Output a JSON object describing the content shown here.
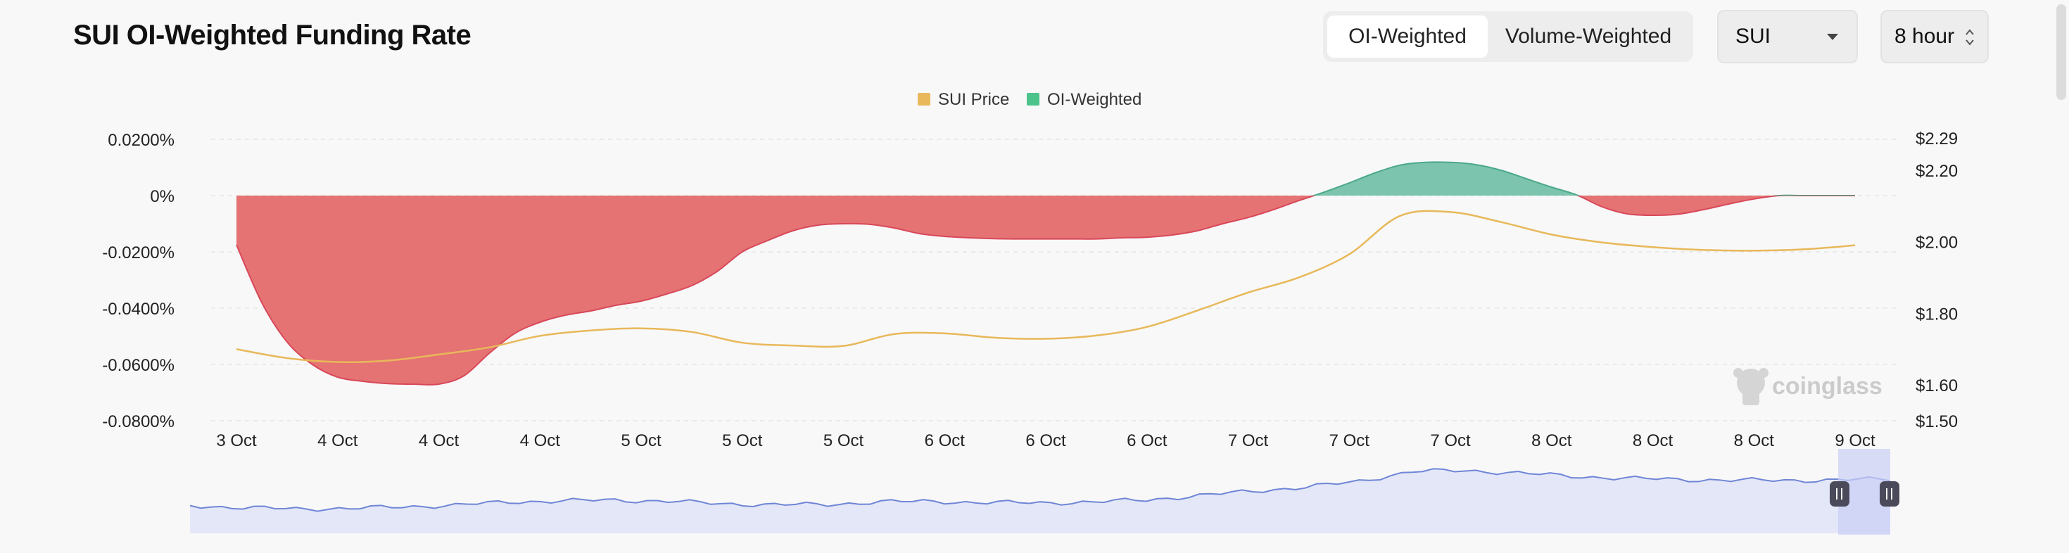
{
  "header": {
    "title": "SUI OI-Weighted Funding Rate",
    "tabs": [
      {
        "label": "OI-Weighted",
        "active": true
      },
      {
        "label": "Volume-Weighted",
        "active": false
      }
    ],
    "symbol_select": {
      "value": "SUI"
    },
    "period_select": {
      "value": "8 hour"
    }
  },
  "watermark": "coinglass",
  "colors": {
    "negative_fill": "#e57373",
    "negative_line": "#d8485a",
    "positive_fill": "#7cc4ae",
    "positive_line": "#4aa88a",
    "price_line": "#e8b85a",
    "legend_price": "#e8b85a",
    "legend_oi": "#4cc38a",
    "navigator_fill": "#e4e7f8",
    "navigator_line": "#6f86d6"
  },
  "chart_data": {
    "type": "area",
    "title": "SUI OI-Weighted Funding Rate",
    "legend": [
      {
        "name": "SUI Price",
        "icon": "square"
      },
      {
        "name": "OI-Weighted",
        "icon": "square"
      }
    ],
    "legend_position": "top-center",
    "x_tick_labels": [
      "3 Oct",
      "4 Oct",
      "4 Oct",
      "4 Oct",
      "5 Oct",
      "5 Oct",
      "5 Oct",
      "6 Oct",
      "6 Oct",
      "6 Oct",
      "7 Oct",
      "7 Oct",
      "7 Oct",
      "8 Oct",
      "8 Oct",
      "8 Oct",
      "9 Oct"
    ],
    "left_axis": {
      "ticks": [
        0.02,
        0,
        -0.02,
        -0.04,
        -0.06,
        -0.08
      ],
      "tick_labels": [
        "0.0200%",
        "0%",
        "-0.0200%",
        "-0.0400%",
        "-0.0600%",
        "-0.0800%"
      ],
      "range": [
        -0.08,
        0.02
      ]
    },
    "right_axis": {
      "tick_labels": [
        {
          "label": "$2.29",
          "value": 2.29
        },
        {
          "label": "$2.20",
          "value": 2.2
        },
        {
          "label": "$2.00",
          "value": 2.0
        },
        {
          "label": "$1.80",
          "value": 1.8
        },
        {
          "label": "$1.60",
          "value": 1.6
        },
        {
          "label": "$1.50",
          "value": 1.5
        }
      ],
      "range": [
        1.5,
        2.29
      ]
    },
    "grid": true,
    "series": [
      {
        "name": "OI-Weighted",
        "axis": "left",
        "x": [
          0,
          0.25,
          0.5,
          0.75,
          1,
          1.25,
          1.5,
          1.75,
          2,
          2.25,
          2.5,
          2.75,
          3,
          3.25,
          3.5,
          3.75,
          4,
          4.25,
          4.5,
          4.75,
          5,
          5.25,
          5.5,
          5.75,
          6,
          6.25,
          6.5,
          6.75,
          7,
          7.25,
          7.5,
          7.75,
          8,
          8.25,
          8.5,
          8.75,
          9,
          9.25,
          9.5,
          9.75,
          10,
          10.25,
          10.5,
          10.75,
          11,
          11.25,
          11.5,
          11.75,
          12,
          12.25,
          12.5,
          12.75,
          13,
          13.25,
          13.5,
          13.75,
          14,
          14.25,
          14.5,
          14.75,
          15,
          15.25,
          15.5,
          15.75,
          16
        ],
        "values": [
          -0.0175,
          -0.038,
          -0.052,
          -0.06,
          -0.0645,
          -0.066,
          -0.0668,
          -0.067,
          -0.067,
          -0.064,
          -0.056,
          -0.049,
          -0.045,
          -0.0425,
          -0.041,
          -0.039,
          -0.0375,
          -0.035,
          -0.032,
          -0.027,
          -0.02,
          -0.016,
          -0.0125,
          -0.0105,
          -0.01,
          -0.0102,
          -0.0115,
          -0.0135,
          -0.0145,
          -0.015,
          -0.0153,
          -0.0154,
          -0.0154,
          -0.0154,
          -0.0154,
          -0.015,
          -0.0148,
          -0.014,
          -0.0125,
          -0.01,
          -0.0078,
          -0.005,
          -0.0018,
          0.0012,
          0.0045,
          0.008,
          0.0108,
          0.0118,
          0.0118,
          0.011,
          0.009,
          0.006,
          0.003,
          0.0002,
          -0.004,
          -0.0065,
          -0.007,
          -0.0066,
          -0.005,
          -0.003,
          -0.0012,
          0,
          0,
          0,
          0
        ]
      },
      {
        "name": "SUI Price",
        "axis": "right",
        "x": [
          0,
          0.5,
          1,
          1.5,
          2,
          2.5,
          3,
          3.5,
          4,
          4.5,
          5,
          5.5,
          6,
          6.5,
          7,
          7.5,
          8,
          8.5,
          9,
          9.5,
          10,
          10.5,
          11,
          11.5,
          12,
          12.5,
          13,
          13.5,
          14,
          14.5,
          15,
          15.5,
          16
        ],
        "values": [
          1.7,
          1.675,
          1.664,
          1.668,
          1.685,
          1.705,
          1.737,
          1.752,
          1.758,
          1.748,
          1.718,
          1.71,
          1.709,
          1.742,
          1.744,
          1.732,
          1.729,
          1.738,
          1.762,
          1.808,
          1.858,
          1.9,
          1.965,
          2.072,
          2.083,
          2.055,
          2.02,
          1.998,
          1.985,
          1.977,
          1.975,
          1.979,
          1.99
        ]
      }
    ]
  }
}
